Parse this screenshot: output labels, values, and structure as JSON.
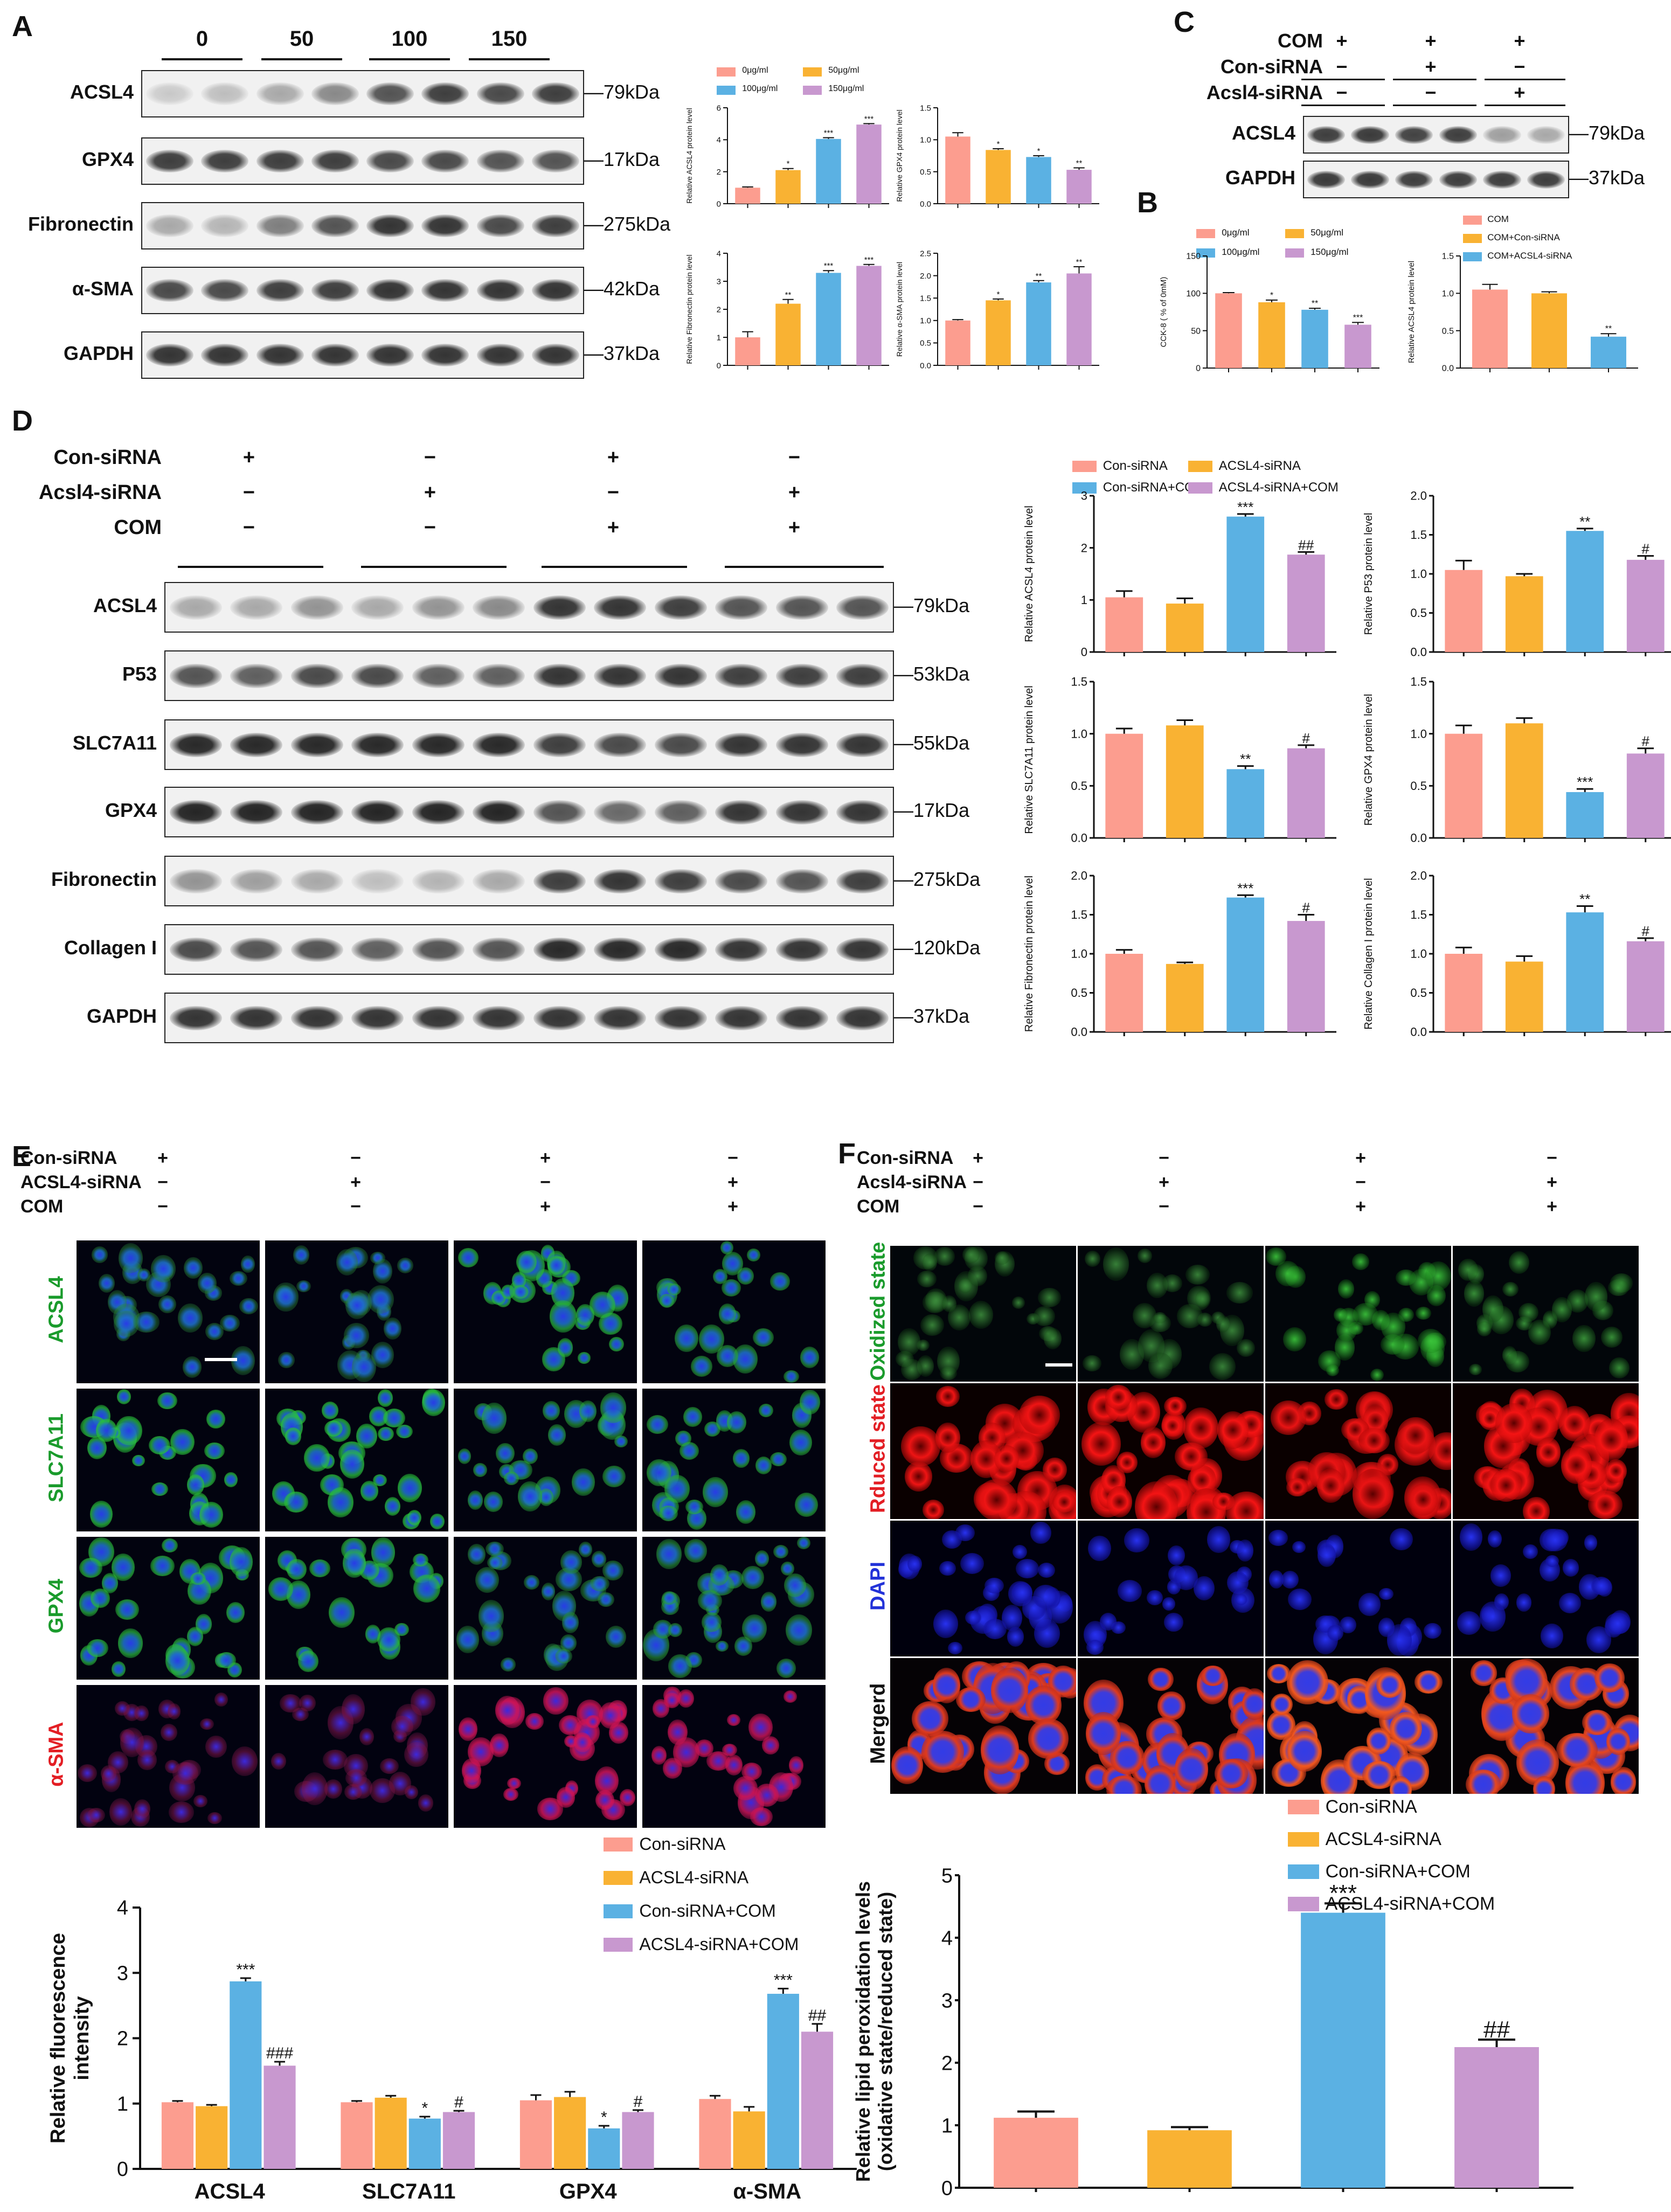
{
  "colors": {
    "pink": "#fc9d8f",
    "orange": "#f9b233",
    "blue": "#5bb1e3",
    "purple": "#c898cf"
  },
  "panels": {
    "A": {
      "label": "A",
      "lanes": [
        "0",
        "50",
        "100",
        "150"
      ],
      "blots": [
        {
          "name": "ACSL4",
          "kda": "79kDa"
        },
        {
          "name": "GPX4",
          "kda": "17kDa"
        },
        {
          "name": "Fibronectin",
          "kda": "275kDa"
        },
        {
          "name": "α-SMA",
          "kda": "42kDa"
        },
        {
          "name": "GAPDH",
          "kda": "37kDa"
        }
      ],
      "legend": [
        "0μg/ml",
        "50μg/ml",
        "100μg/ml",
        "150μg/ml"
      ]
    },
    "B": {
      "label": "B",
      "legend_dose": [
        "0μg/ml",
        "50μg/ml",
        "100μg/ml",
        "150μg/ml"
      ],
      "legend_sirna": [
        "COM",
        "COM+Con-siRNA",
        "COM+ACSL4-siRNA"
      ]
    },
    "C": {
      "label": "C",
      "treatments": [
        {
          "name": "COM",
          "signs": [
            "+",
            "+",
            "+"
          ]
        },
        {
          "name": "Con-siRNA",
          "signs": [
            "−",
            "+",
            "−"
          ]
        },
        {
          "name": "Acsl4-siRNA",
          "signs": [
            "−",
            "−",
            "+"
          ]
        }
      ],
      "blots": [
        {
          "name": "ACSL4",
          "kda": "79kDa"
        },
        {
          "name": "GAPDH",
          "kda": "37kDa"
        }
      ]
    },
    "D": {
      "label": "D",
      "treatments": [
        {
          "name": "Con-siRNA",
          "signs": [
            "+",
            "−",
            "+",
            "−"
          ]
        },
        {
          "name": "Acsl4-siRNA",
          "signs": [
            "−",
            "+",
            "−",
            "+"
          ]
        },
        {
          "name": "COM",
          "signs": [
            "−",
            "−",
            "+",
            "+"
          ]
        }
      ],
      "blots": [
        {
          "name": "ACSL4",
          "kda": "79kDa"
        },
        {
          "name": "P53",
          "kda": "53kDa"
        },
        {
          "name": "SLC7A11",
          "kda": "55kDa"
        },
        {
          "name": "GPX4",
          "kda": "17kDa"
        },
        {
          "name": "Fibronectin",
          "kda": "275kDa"
        },
        {
          "name": "Collagen I",
          "kda": "120kDa"
        },
        {
          "name": "GAPDH",
          "kda": "37kDa"
        }
      ],
      "legend": [
        "Con-siRNA",
        "ACSL4-siRNA",
        "Con-siRNA+COM",
        "ACSL4-siRNA+COM"
      ]
    },
    "E": {
      "label": "E",
      "treatments": [
        {
          "name": "Con-siRNA",
          "signs": [
            "+",
            "−",
            "+",
            "−"
          ]
        },
        {
          "name": "ACSL4-siRNA",
          "signs": [
            "−",
            "+",
            "−",
            "+"
          ]
        },
        {
          "name": "COM",
          "signs": [
            "−",
            "−",
            "+",
            "+"
          ]
        }
      ],
      "rows": [
        "ACSL4",
        "SLC7A11",
        "GPX4",
        "α-SMA"
      ],
      "legend": [
        "Con-siRNA",
        "ACSL4-siRNA",
        "Con-siRNA+COM",
        "ACSL4-siRNA+COM"
      ]
    },
    "F": {
      "label": "F",
      "treatments": [
        {
          "name": "Con-siRNA",
          "signs": [
            "+",
            "−",
            "+",
            "−"
          ]
        },
        {
          "name": "Acsl4-siRNA",
          "signs": [
            "−",
            "+",
            "−",
            "+"
          ]
        },
        {
          "name": "COM",
          "signs": [
            "−",
            "−",
            "+",
            "+"
          ]
        }
      ],
      "rows": [
        "Oxidized state",
        "Rduced state",
        "DAPI",
        "Mergerd"
      ],
      "legend": [
        "Con-siRNA",
        "ACSL4-siRNA",
        "Con-siRNA+COM",
        "ACSL4-siRNA+COM"
      ]
    }
  },
  "chart_data": [
    {
      "id": "A1",
      "type": "bar",
      "ylabel": "Relative ACSL4 protein level",
      "ylim": [
        0,
        6
      ],
      "yticks": [
        0,
        2,
        4,
        6
      ],
      "values": [
        1.0,
        2.1,
        4.05,
        4.95
      ],
      "errors": [
        0.05,
        0.1,
        0.08,
        0.06
      ],
      "sig": [
        "",
        "*",
        "***",
        "***"
      ]
    },
    {
      "id": "A2",
      "type": "bar",
      "ylabel": "Relative GPX4 protein level",
      "ylim": [
        0,
        1.5
      ],
      "yticks": [
        0,
        0.5,
        1.0,
        1.5
      ],
      "ticklabels": [
        "0.0",
        "0.5",
        "1.0",
        "1.5"
      ],
      "values": [
        1.05,
        0.84,
        0.73,
        0.53
      ],
      "errors": [
        0.06,
        0.02,
        0.02,
        0.03
      ],
      "sig": [
        "",
        "*",
        "*",
        "**"
      ]
    },
    {
      "id": "A3",
      "type": "bar",
      "ylabel": "Relative Fibronectin protein level",
      "ylim": [
        0,
        4
      ],
      "yticks": [
        0,
        1,
        2,
        3,
        4
      ],
      "values": [
        1.0,
        2.2,
        3.3,
        3.55
      ],
      "errors": [
        0.2,
        0.15,
        0.08,
        0.05
      ],
      "sig": [
        "",
        "**",
        "***",
        "***"
      ]
    },
    {
      "id": "A4",
      "type": "bar",
      "ylabel": "Relative α-SMA protein level",
      "ylim": [
        0,
        2.5
      ],
      "yticks": [
        0,
        0.5,
        1.0,
        1.5,
        2.0,
        2.5
      ],
      "ticklabels": [
        "0.0",
        "0.5",
        "1.0",
        "1.5",
        "2.0",
        "2.5"
      ],
      "values": [
        1.0,
        1.45,
        1.85,
        2.05
      ],
      "errors": [
        0.02,
        0.03,
        0.04,
        0.15
      ],
      "sig": [
        "",
        "*",
        "**",
        "**"
      ]
    },
    {
      "id": "B1",
      "type": "bar",
      "ylabel": "CCK-8 ( % of 0mM)",
      "ylim": [
        0,
        150
      ],
      "yticks": [
        0,
        50,
        100,
        150
      ],
      "values": [
        100,
        88,
        78,
        58
      ],
      "errors": [
        1,
        3,
        2,
        3
      ],
      "sig": [
        "",
        "*",
        "**",
        "***"
      ]
    },
    {
      "id": "B2",
      "type": "bar",
      "ylabel": "Relative ACSL4 protein level",
      "ylim": [
        0,
        1.5
      ],
      "yticks": [
        0,
        0.5,
        1.0,
        1.5
      ],
      "ticklabels": [
        "0.0",
        "0.5",
        "1.0",
        "1.5"
      ],
      "values": [
        1.05,
        1.0,
        0.42
      ],
      "errors": [
        0.07,
        0.02,
        0.04
      ],
      "sig": [
        "",
        "",
        "**"
      ]
    },
    {
      "id": "D1",
      "type": "bar",
      "ylabel": "Relative ACSL4 protein level",
      "ylim": [
        0,
        3
      ],
      "yticks": [
        0,
        1,
        2,
        3
      ],
      "values": [
        1.05,
        0.93,
        2.6,
        1.87
      ],
      "errors": [
        0.12,
        0.1,
        0.05,
        0.05
      ],
      "sig": [
        "",
        "",
        "***",
        "##"
      ]
    },
    {
      "id": "D2",
      "type": "bar",
      "ylabel": "Relative P53 protein level",
      "ylim": [
        0,
        2
      ],
      "yticks": [
        0,
        0.5,
        1.0,
        1.5,
        2.0
      ],
      "ticklabels": [
        "0.0",
        "0.5",
        "1.0",
        "1.5",
        "2.0"
      ],
      "values": [
        1.05,
        0.97,
        1.55,
        1.18
      ],
      "errors": [
        0.12,
        0.03,
        0.03,
        0.05
      ],
      "sig": [
        "",
        "",
        "**",
        "#"
      ]
    },
    {
      "id": "D3",
      "type": "bar",
      "ylabel": "Relative SLC7A11 protein level",
      "ylim": [
        0,
        1.5
      ],
      "yticks": [
        0,
        0.5,
        1.0,
        1.5
      ],
      "ticklabels": [
        "0.0",
        "0.5",
        "1.0",
        "1.5"
      ],
      "values": [
        1.0,
        1.08,
        0.66,
        0.86
      ],
      "errors": [
        0.05,
        0.05,
        0.03,
        0.03
      ],
      "sig": [
        "",
        "",
        "**",
        "#"
      ]
    },
    {
      "id": "D4",
      "type": "bar",
      "ylabel": "Relative GPX4 protein level",
      "ylim": [
        0,
        1.5
      ],
      "yticks": [
        0,
        0.5,
        1.0,
        1.5
      ],
      "ticklabels": [
        "0.0",
        "0.5",
        "1.0",
        "1.5"
      ],
      "values": [
        1.0,
        1.1,
        0.44,
        0.81
      ],
      "errors": [
        0.08,
        0.05,
        0.03,
        0.05
      ],
      "sig": [
        "",
        "",
        "***",
        "#"
      ]
    },
    {
      "id": "D5",
      "type": "bar",
      "ylabel": "Relative Fibronectin protein level",
      "ylim": [
        0,
        2
      ],
      "yticks": [
        0,
        0.5,
        1.0,
        1.5,
        2.0
      ],
      "ticklabels": [
        "0.0",
        "0.5",
        "1.0",
        "1.5",
        "2.0"
      ],
      "values": [
        1.0,
        0.87,
        1.72,
        1.42
      ],
      "errors": [
        0.05,
        0.02,
        0.03,
        0.08
      ],
      "sig": [
        "",
        "",
        "***",
        "#"
      ]
    },
    {
      "id": "D6",
      "type": "bar",
      "ylabel": "Relative Collagen I protein level",
      "ylim": [
        0,
        2
      ],
      "yticks": [
        0,
        0.5,
        1.0,
        1.5,
        2.0
      ],
      "ticklabels": [
        "0.0",
        "0.5",
        "1.0",
        "1.5",
        "2.0"
      ],
      "values": [
        1.0,
        0.9,
        1.53,
        1.16
      ],
      "errors": [
        0.08,
        0.07,
        0.08,
        0.04
      ],
      "sig": [
        "",
        "",
        "**",
        "#"
      ]
    },
    {
      "id": "E",
      "type": "bar",
      "ylabel": "Relative fluorescence intensity",
      "ylim": [
        0,
        4
      ],
      "yticks": [
        0,
        1,
        2,
        3,
        4
      ],
      "categories": [
        "ACSL4",
        "SLC7A11",
        "GPX4",
        "α-SMA"
      ],
      "series": [
        {
          "name": "Con-siRNA",
          "values": [
            1.02,
            1.02,
            1.05,
            1.07
          ],
          "errors": [
            0.02,
            0.02,
            0.08,
            0.05
          ]
        },
        {
          "name": "ACSL4-siRNA",
          "values": [
            0.96,
            1.09,
            1.1,
            0.88
          ],
          "errors": [
            0.02,
            0.03,
            0.08,
            0.07
          ]
        },
        {
          "name": "Con-siRNA+COM",
          "values": [
            2.87,
            0.77,
            0.62,
            2.68
          ],
          "errors": [
            0.05,
            0.03,
            0.04,
            0.08
          ]
        },
        {
          "name": "ACSL4-siRNA+COM",
          "values": [
            1.58,
            0.87,
            0.87,
            2.1
          ],
          "errors": [
            0.06,
            0.02,
            0.03,
            0.12
          ]
        }
      ],
      "sig": [
        [
          "",
          "",
          "***",
          "###"
        ],
        [
          "",
          "",
          "*",
          "#"
        ],
        [
          "",
          "",
          "*",
          "#"
        ],
        [
          "",
          "",
          "***",
          "##"
        ]
      ]
    },
    {
      "id": "F",
      "type": "bar",
      "ylabel": "Relative lipid peroxidation levels",
      "ylabel2": "(oxidative state/reduced state)",
      "ylim": [
        0,
        5
      ],
      "yticks": [
        0,
        1,
        2,
        3,
        4,
        5
      ],
      "values": [
        1.12,
        0.92,
        4.4,
        2.25
      ],
      "errors": [
        0.1,
        0.05,
        0.15,
        0.12
      ],
      "sig": [
        "",
        "",
        "***",
        "##"
      ]
    }
  ]
}
